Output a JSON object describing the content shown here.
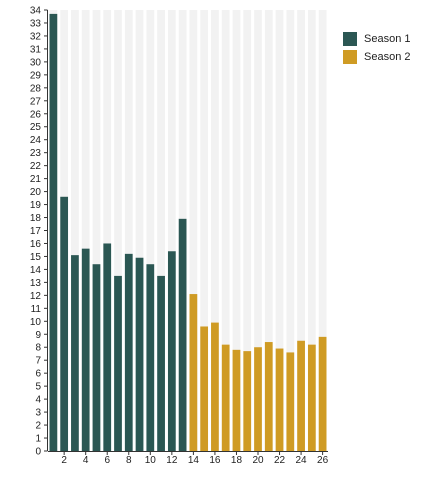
{
  "chart_data": {
    "type": "bar",
    "x": [
      1,
      2,
      3,
      4,
      5,
      6,
      7,
      8,
      9,
      10,
      11,
      12,
      13,
      14,
      15,
      16,
      17,
      18,
      19,
      20,
      21,
      22,
      23,
      24,
      25,
      26
    ],
    "x_tick_labels": [
      "2",
      "4",
      "6",
      "8",
      "10",
      "12",
      "14",
      "16",
      "18",
      "20",
      "22",
      "24",
      "26"
    ],
    "x_tick_values": [
      2,
      4,
      6,
      8,
      10,
      12,
      14,
      16,
      18,
      20,
      22,
      24,
      26
    ],
    "ylim": [
      0,
      34
    ],
    "y_ticks": [
      0,
      1,
      2,
      3,
      4,
      5,
      6,
      7,
      8,
      9,
      10,
      11,
      12,
      13,
      14,
      15,
      16,
      17,
      18,
      19,
      20,
      21,
      22,
      23,
      24,
      25,
      26,
      27,
      28,
      29,
      30,
      31,
      32,
      33,
      34
    ],
    "background_bars": true,
    "legend_position": "top-right",
    "series": [
      {
        "name": "Season 1",
        "color": "#2b5753",
        "x": [
          1,
          2,
          3,
          4,
          5,
          6,
          7,
          8,
          9,
          10,
          11,
          12,
          13
        ],
        "values": [
          33.7,
          19.6,
          15.1,
          15.6,
          14.4,
          16.0,
          13.5,
          15.2,
          14.9,
          14.4,
          13.5,
          15.4,
          17.9
        ]
      },
      {
        "name": "Season 2",
        "color": "#cf9b24",
        "x": [
          14,
          15,
          16,
          17,
          18,
          19,
          20,
          21,
          22,
          23,
          24,
          25,
          26
        ],
        "values": [
          12.1,
          9.6,
          9.9,
          8.2,
          7.8,
          7.7,
          8.0,
          8.4,
          7.9,
          7.6,
          8.5,
          8.2,
          8.8
        ]
      }
    ]
  }
}
